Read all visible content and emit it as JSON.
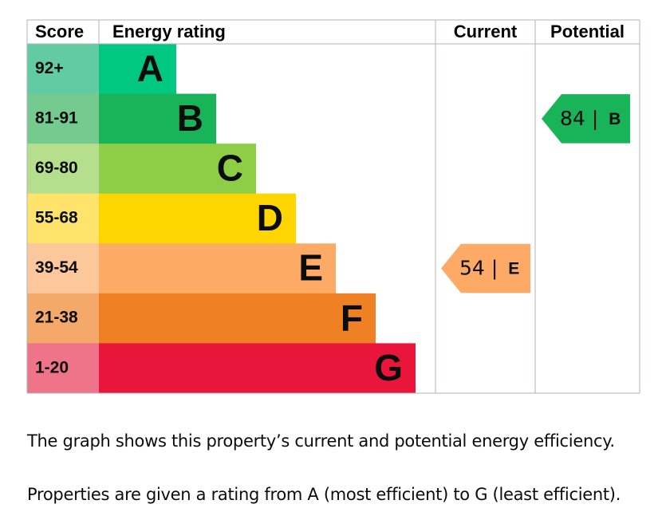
{
  "headers": {
    "score": "Score",
    "rating": "Energy rating",
    "current": "Current",
    "potential": "Potential"
  },
  "bands": [
    {
      "score": "92+",
      "letter": "A",
      "color": "#00c781",
      "score_color": "#63cba3"
    },
    {
      "score": "81-91",
      "letter": "B",
      "color": "#19b459",
      "score_color": "#75ca8f"
    },
    {
      "score": "69-80",
      "letter": "C",
      "color": "#8dce46",
      "score_color": "#b5df8c"
    },
    {
      "score": "55-68",
      "letter": "D",
      "color": "#ffd500",
      "score_color": "#ffe36a"
    },
    {
      "score": "39-54",
      "letter": "E",
      "color": "#fcaa65",
      "score_color": "#fdc79c"
    },
    {
      "score": "21-38",
      "letter": "F",
      "color": "#ef8023",
      "score_color": "#f4a86a"
    },
    {
      "score": "1-20",
      "letter": "G",
      "color": "#e9153b",
      "score_color": "#f07489"
    }
  ],
  "current": {
    "value": 54,
    "letter": "E"
  },
  "potential": {
    "value": 84,
    "letter": "B"
  },
  "separator": "|",
  "paragraphs": [
    "The graph shows this property’s current and potential energy efficiency.",
    "Properties are given a rating from A (most efficient) to G (least efficient)."
  ]
}
